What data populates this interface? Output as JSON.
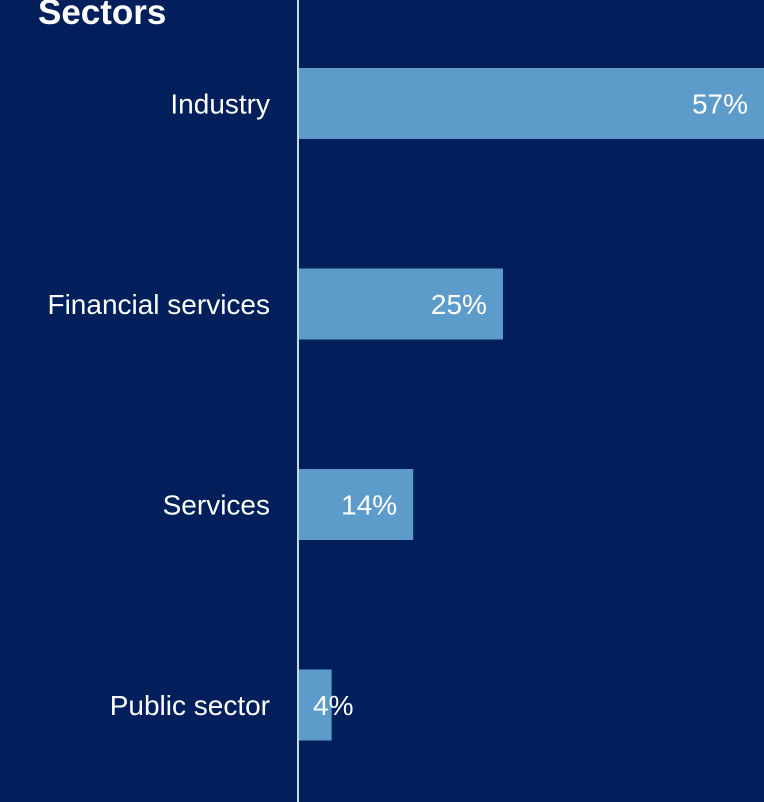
{
  "colors": {
    "background": "#001f5b",
    "bar": "#5d9cca",
    "text": "#ffffff",
    "axis": "#c9d3e4"
  },
  "chart_data": {
    "type": "bar",
    "orientation": "horizontal",
    "title": "Sectors",
    "categories": [
      "Industry",
      "Financial services",
      "Services",
      "Public sector"
    ],
    "values": [
      57,
      25,
      14,
      4
    ],
    "value_labels": [
      "57%",
      "25%",
      "14%",
      "4%"
    ],
    "unit": "%",
    "xlim": [
      0,
      57
    ],
    "grid": false,
    "legend": "none"
  }
}
